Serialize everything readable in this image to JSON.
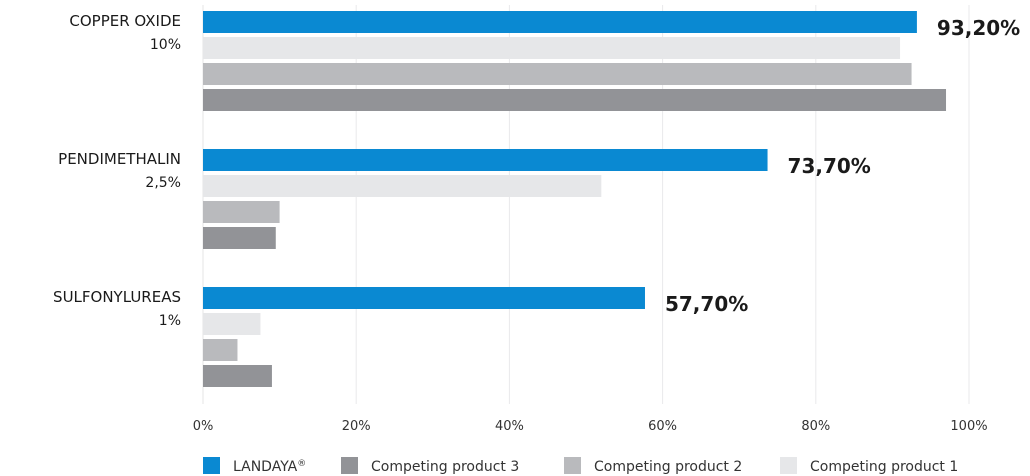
{
  "chart_data": {
    "type": "bar",
    "orientation": "horizontal",
    "categories": [
      {
        "name": "COPPER OXIDE",
        "sub": "10%"
      },
      {
        "name": "PENDIMETHALIN",
        "sub": "2,5%"
      },
      {
        "name": "SULFONYLUREAS",
        "sub": "1%"
      }
    ],
    "series": [
      {
        "name": "LANDAYA",
        "mark": "®",
        "color": "#0a89d2",
        "values": [
          93.2,
          73.7,
          57.7
        ]
      },
      {
        "name": "Competing product 1",
        "color": "#e6e7e9",
        "values": [
          91,
          52,
          7.5
        ]
      },
      {
        "name": "Competing product 2",
        "color": "#b9babd",
        "values": [
          92.5,
          10,
          4.5
        ]
      },
      {
        "name": "Competing product 3",
        "color": "#929397",
        "values": [
          97,
          9.5,
          9
        ]
      }
    ],
    "value_labels": [
      "93,20%",
      "73,70%",
      "57,70%"
    ],
    "xlim": [
      0,
      100
    ],
    "ticks": [
      "0%",
      "20%",
      "40%",
      "60%",
      "80%",
      "100%"
    ],
    "grid": true,
    "legend": {
      "placement": "bottom",
      "order": [
        "LANDAYA",
        "Competing product 3",
        "Competing product 2",
        "Competing product 1"
      ]
    }
  }
}
